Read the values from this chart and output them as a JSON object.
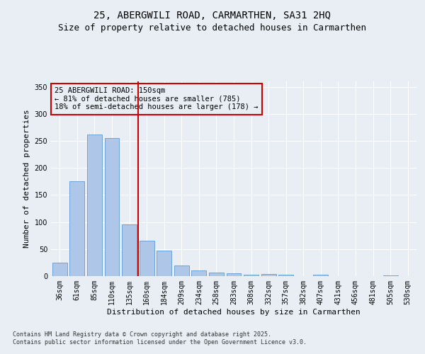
{
  "title_line1": "25, ABERGWILI ROAD, CARMARTHEN, SA31 2HQ",
  "title_line2": "Size of property relative to detached houses in Carmarthen",
  "xlabel": "Distribution of detached houses by size in Carmarthen",
  "ylabel": "Number of detached properties",
  "categories": [
    "36sqm",
    "61sqm",
    "85sqm",
    "110sqm",
    "135sqm",
    "160sqm",
    "184sqm",
    "209sqm",
    "234sqm",
    "258sqm",
    "283sqm",
    "308sqm",
    "332sqm",
    "357sqm",
    "382sqm",
    "407sqm",
    "431sqm",
    "456sqm",
    "481sqm",
    "505sqm",
    "530sqm"
  ],
  "values": [
    25,
    175,
    262,
    255,
    95,
    65,
    47,
    20,
    10,
    7,
    5,
    3,
    4,
    3,
    0,
    2,
    0,
    0,
    0,
    1,
    0
  ],
  "bar_color": "#aec6e8",
  "bar_edge_color": "#5b9bd5",
  "ref_line_x": 4.5,
  "ref_line_color": "#cc0000",
  "annotation_text": "25 ABERGWILI ROAD: 150sqm\n← 81% of detached houses are smaller (785)\n18% of semi-detached houses are larger (178) →",
  "annotation_box_color": "#cc0000",
  "ylim": [
    0,
    360
  ],
  "yticks": [
    0,
    50,
    100,
    150,
    200,
    250,
    300,
    350
  ],
  "background_color": "#e8eef4",
  "footnote_line1": "Contains HM Land Registry data © Crown copyright and database right 2025.",
  "footnote_line2": "Contains public sector information licensed under the Open Government Licence v3.0.",
  "title_fontsize": 10,
  "subtitle_fontsize": 9,
  "tick_fontsize": 7,
  "label_fontsize": 8,
  "annotation_fontsize": 7.5,
  "footnote_fontsize": 6
}
